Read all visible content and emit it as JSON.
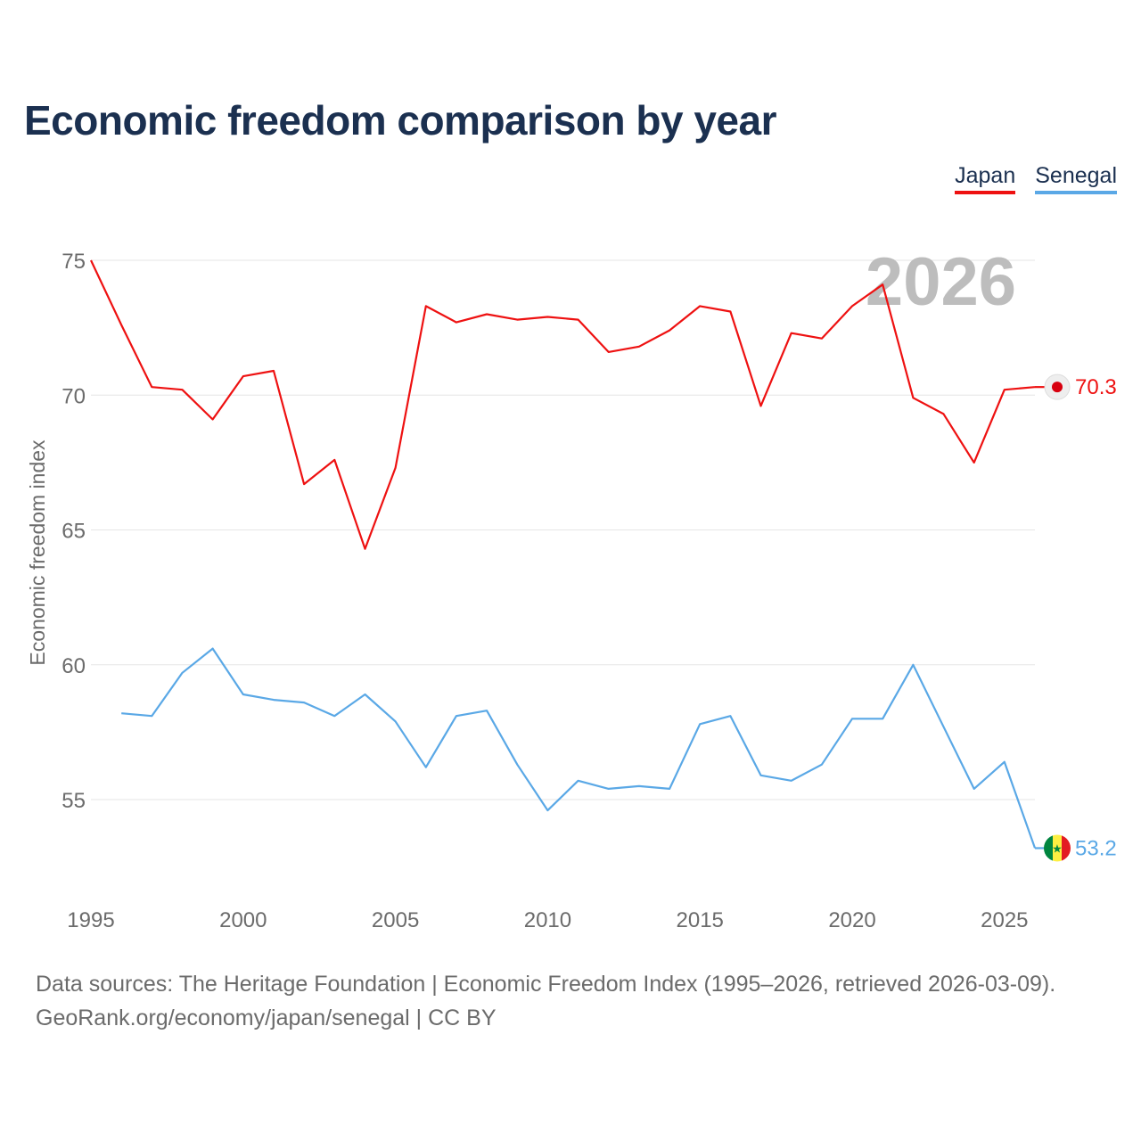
{
  "chart_data": {
    "type": "line",
    "title": "Economic freedom comparison by year",
    "xlabel": "",
    "ylabel": "Economic freedom index",
    "xlim": [
      1995,
      2026
    ],
    "ylim": [
      52,
      77
    ],
    "xticks": [
      1995,
      2000,
      2005,
      2010,
      2015,
      2020,
      2025
    ],
    "yticks": [
      55,
      60,
      65,
      70,
      75
    ],
    "year_label": "2026",
    "legend_position": "top-right",
    "series": [
      {
        "name": "Japan",
        "color": "#ee1111",
        "end_label": "70.3",
        "marker_icon": "japan-flag-icon",
        "x": [
          1995,
          1996,
          1997,
          1998,
          1999,
          2000,
          2001,
          2002,
          2003,
          2004,
          2005,
          2006,
          2007,
          2008,
          2009,
          2010,
          2011,
          2012,
          2013,
          2014,
          2015,
          2016,
          2017,
          2018,
          2019,
          2020,
          2021,
          2022,
          2023,
          2024,
          2025,
          2026
        ],
        "values": [
          75.0,
          72.6,
          70.3,
          70.2,
          69.1,
          70.7,
          70.9,
          66.7,
          67.6,
          64.3,
          67.3,
          73.3,
          72.7,
          73.0,
          72.8,
          72.9,
          72.8,
          71.6,
          71.8,
          72.4,
          73.3,
          73.1,
          69.6,
          72.3,
          72.1,
          73.3,
          74.1,
          69.9,
          69.3,
          67.5,
          70.2,
          70.3
        ]
      },
      {
        "name": "Senegal",
        "color": "#5aa8e6",
        "end_label": "53.2",
        "marker_icon": "senegal-flag-icon",
        "x": [
          1996,
          1997,
          1998,
          1999,
          2000,
          2001,
          2002,
          2003,
          2004,
          2005,
          2006,
          2007,
          2008,
          2009,
          2010,
          2011,
          2012,
          2013,
          2014,
          2015,
          2016,
          2017,
          2018,
          2019,
          2020,
          2021,
          2022,
          2023,
          2024,
          2025,
          2026
        ],
        "values": [
          58.2,
          58.1,
          59.7,
          60.6,
          58.9,
          58.7,
          58.6,
          58.1,
          58.9,
          57.9,
          56.2,
          58.1,
          58.3,
          56.3,
          54.6,
          55.7,
          55.4,
          55.5,
          55.4,
          57.8,
          58.1,
          55.9,
          55.7,
          56.3,
          58.0,
          58.0,
          60.0,
          57.7,
          55.4,
          56.4,
          53.2
        ]
      }
    ]
  },
  "footer": {
    "line1": "Data sources: The Heritage Foundation | Economic Freedom Index (1995–2026, retrieved 2026-03-09).",
    "line2": "GeoRank.org/economy/japan/senegal | CC BY"
  }
}
